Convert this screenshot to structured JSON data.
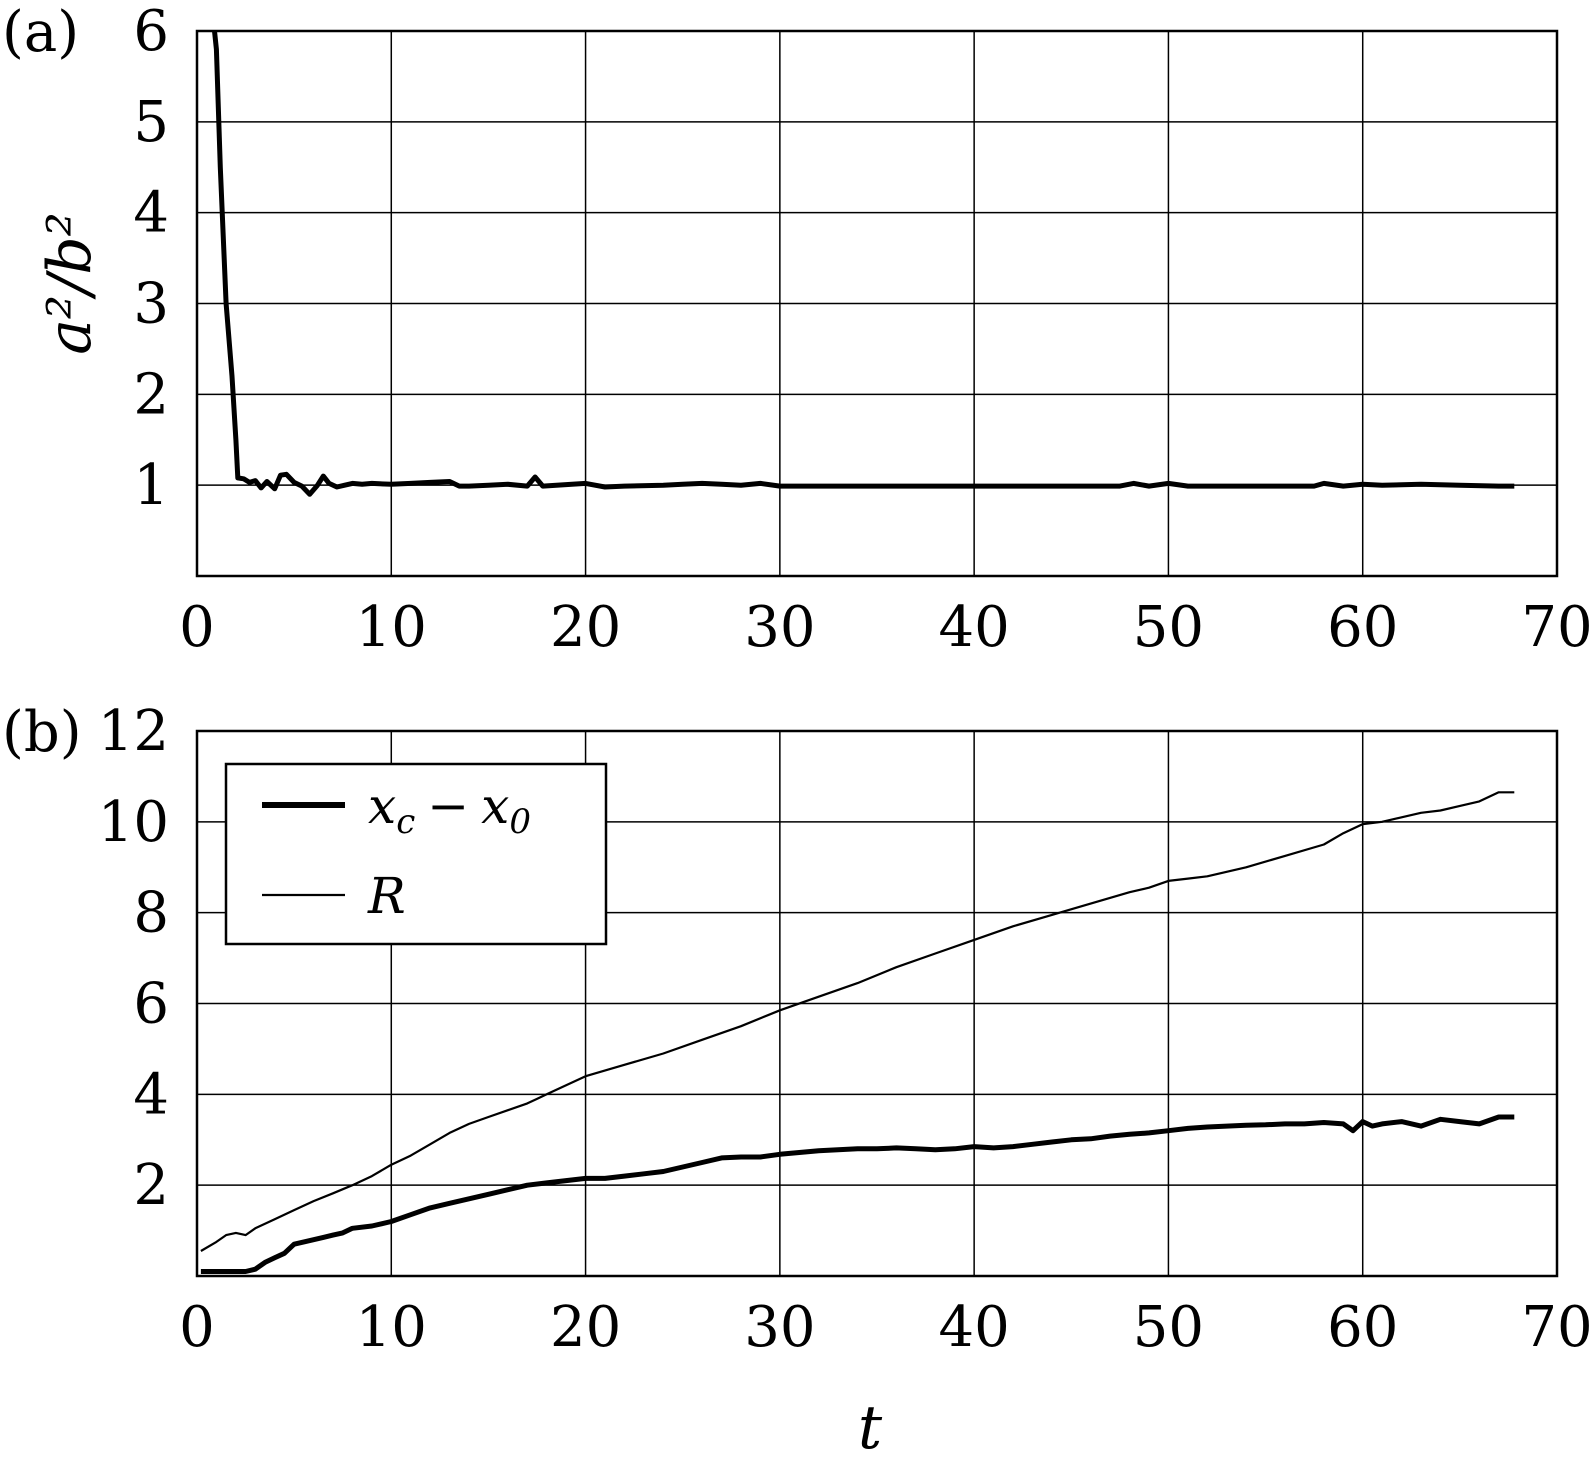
{
  "chart_data": [
    {
      "type": "line",
      "panel_label": "(a)",
      "xlabel": "",
      "ylabel": "a²/b²",
      "xlim": [
        0,
        70
      ],
      "ylim": [
        0,
        6
      ],
      "xticks": [
        "0",
        "10",
        "20",
        "30",
        "40",
        "50",
        "60",
        "70"
      ],
      "yticks": [
        "1",
        "2",
        "3",
        "4",
        "5",
        "6"
      ],
      "grid": true,
      "series": [
        {
          "name": "",
          "weight": "thick",
          "color": "#000000",
          "x": [
            0.9,
            1.0,
            1.2,
            1.5,
            1.8,
            2.0,
            2.1,
            2.4,
            2.7,
            3.0,
            3.3,
            3.6,
            4.0,
            4.3,
            4.6,
            5.0,
            5.4,
            5.8,
            6.2,
            6.5,
            6.8,
            7.2,
            7.6,
            8.0,
            8.5,
            9.0,
            10,
            11,
            12,
            13,
            13.5,
            14,
            15,
            16,
            17,
            17.4,
            17.8,
            18.5,
            20,
            21,
            22,
            24,
            25,
            26,
            27,
            28,
            29,
            30,
            35,
            40,
            45,
            47.5,
            48.2,
            49,
            50,
            51,
            55,
            57.5,
            58,
            59,
            60,
            61,
            63,
            65,
            67,
            67.8
          ],
          "y": [
            6.0,
            5.8,
            4.5,
            3.0,
            2.2,
            1.5,
            1.08,
            1.07,
            1.03,
            1.05,
            0.97,
            1.04,
            0.96,
            1.11,
            1.12,
            1.03,
            0.99,
            0.9,
            1.0,
            1.1,
            1.02,
            0.98,
            1.0,
            1.02,
            1.01,
            1.02,
            1.01,
            1.02,
            1.03,
            1.04,
            0.99,
            0.99,
            1.0,
            1.01,
            0.99,
            1.09,
            0.99,
            1.0,
            1.02,
            0.98,
            0.99,
            1.0,
            1.01,
            1.02,
            1.01,
            1.0,
            1.02,
            0.99,
            0.99,
            0.99,
            0.99,
            0.99,
            1.02,
            0.99,
            1.02,
            0.99,
            0.99,
            0.99,
            1.02,
            0.99,
            1.01,
            1.0,
            1.01,
            1.0,
            0.99,
            0.99
          ]
        }
      ]
    },
    {
      "type": "line",
      "panel_label": "(b)",
      "xlabel": "t",
      "ylabel": "",
      "xlim": [
        0,
        70
      ],
      "ylim": [
        0,
        12
      ],
      "xticks": [
        "0",
        "10",
        "20",
        "30",
        "40",
        "50",
        "60",
        "70"
      ],
      "yticks": [
        "2",
        "4",
        "6",
        "8",
        "10",
        "12"
      ],
      "grid": true,
      "legend_position": "top-left",
      "series": [
        {
          "name": "x_c − x_0",
          "legend_main": "x",
          "legend_sub": "c",
          "legend_minus": "−",
          "legend_main2": "x",
          "legend_sub2": "0",
          "weight": "thick",
          "color": "#000000",
          "x": [
            0.2,
            1,
            2,
            2.5,
            3,
            3.5,
            4,
            4.5,
            5,
            5.5,
            6,
            6.5,
            7,
            7.5,
            8,
            9,
            10,
            11,
            12,
            13,
            14,
            15,
            16,
            17,
            18,
            19,
            20,
            21,
            22,
            23,
            24,
            25,
            26,
            27,
            28,
            29,
            30,
            31,
            32,
            33,
            34,
            35,
            36,
            37,
            38,
            39,
            40,
            41,
            42,
            43,
            44,
            45,
            46,
            47,
            48,
            49,
            50,
            51,
            52,
            53,
            54,
            55,
            56,
            57,
            58,
            59,
            59.5,
            60,
            60.5,
            61,
            62,
            63,
            64,
            65,
            66,
            67,
            67.8
          ],
          "y": [
            0.1,
            0.1,
            0.1,
            0.1,
            0.15,
            0.3,
            0.4,
            0.5,
            0.7,
            0.75,
            0.8,
            0.85,
            0.9,
            0.95,
            1.05,
            1.1,
            1.2,
            1.35,
            1.5,
            1.6,
            1.7,
            1.8,
            1.9,
            2.0,
            2.05,
            2.1,
            2.15,
            2.15,
            2.2,
            2.25,
            2.3,
            2.4,
            2.5,
            2.6,
            2.62,
            2.62,
            2.68,
            2.72,
            2.76,
            2.78,
            2.8,
            2.8,
            2.82,
            2.8,
            2.78,
            2.8,
            2.85,
            2.82,
            2.85,
            2.9,
            2.95,
            3.0,
            3.02,
            3.08,
            3.12,
            3.15,
            3.2,
            3.25,
            3.28,
            3.3,
            3.32,
            3.33,
            3.35,
            3.35,
            3.38,
            3.35,
            3.2,
            3.4,
            3.3,
            3.35,
            3.4,
            3.3,
            3.45,
            3.4,
            3.35,
            3.5,
            3.5
          ]
        },
        {
          "name": "R",
          "weight": "thin",
          "color": "#000000",
          "x": [
            0.2,
            1,
            1.5,
            2,
            2.5,
            3,
            4,
            5,
            6,
            7,
            8,
            9,
            10,
            11,
            12,
            13,
            14,
            15,
            16,
            17,
            17.5,
            18,
            19,
            20,
            22,
            24,
            26,
            28,
            30,
            32,
            34,
            36,
            38,
            40,
            42,
            44,
            46,
            48,
            49,
            50,
            51,
            52,
            54,
            56,
            58,
            59,
            60,
            61,
            62,
            63,
            64,
            65,
            66,
            67,
            67.8
          ],
          "y": [
            0.55,
            0.75,
            0.9,
            0.95,
            0.9,
            1.05,
            1.25,
            1.45,
            1.65,
            1.82,
            2.0,
            2.2,
            2.45,
            2.65,
            2.9,
            3.15,
            3.35,
            3.5,
            3.65,
            3.8,
            3.9,
            4.0,
            4.2,
            4.4,
            4.65,
            4.9,
            5.2,
            5.5,
            5.85,
            6.15,
            6.45,
            6.8,
            7.1,
            7.4,
            7.7,
            7.95,
            8.2,
            8.45,
            8.55,
            8.7,
            8.75,
            8.8,
            9.0,
            9.25,
            9.5,
            9.75,
            9.95,
            10.0,
            10.1,
            10.2,
            10.25,
            10.35,
            10.45,
            10.65,
            10.65
          ]
        }
      ]
    }
  ]
}
